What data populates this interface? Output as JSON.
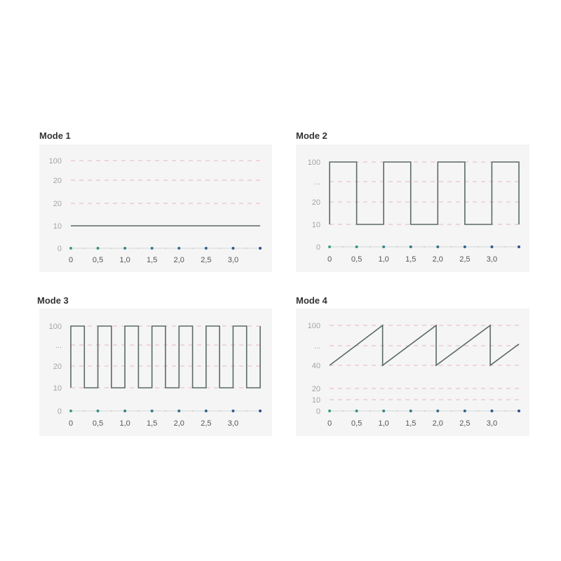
{
  "colors": {
    "panel_background": "#f5f5f5",
    "series_line": "#5b6968",
    "gridline": "#e9b5ba",
    "axis_line": "#d4d8d8",
    "dot_start": "#3a9e86",
    "dot_end": "#2f4f8f"
  },
  "chart_data": [
    {
      "type": "line",
      "title": "Mode 1",
      "x_ticks": [
        "0",
        "0,5",
        "1,0",
        "1,5",
        "2,0",
        "2,5",
        "3,0"
      ],
      "x_range": [
        0,
        3.5
      ],
      "y_ticks": [
        "100",
        "20",
        "20",
        "10",
        "0"
      ],
      "grid": "dashed horizontal",
      "series": [
        {
          "points": [
            [
              0,
              10
            ],
            [
              3.5,
              10
            ]
          ]
        }
      ]
    },
    {
      "type": "line",
      "title": "Mode 2",
      "x_ticks": [
        "0",
        "0,5",
        "1,0",
        "1,5",
        "2,0",
        "2,5",
        "3,0"
      ],
      "x_range": [
        0,
        3.5
      ],
      "y_ticks": [
        "100",
        "...",
        "20",
        "10",
        "0"
      ],
      "grid": "dashed horizontal",
      "series": [
        {
          "points": [
            [
              0,
              10
            ],
            [
              0,
              100
            ],
            [
              0.5,
              100
            ],
            [
              0.5,
              10
            ],
            [
              1.0,
              10
            ],
            [
              1.0,
              100
            ],
            [
              1.5,
              100
            ],
            [
              1.5,
              10
            ],
            [
              2.0,
              10
            ],
            [
              2.0,
              100
            ],
            [
              2.5,
              100
            ],
            [
              2.5,
              10
            ],
            [
              3.0,
              10
            ],
            [
              3.0,
              100
            ],
            [
              3.5,
              100
            ],
            [
              3.5,
              10
            ]
          ]
        }
      ]
    },
    {
      "type": "line",
      "title": "Mode 3",
      "x_ticks": [
        "0",
        "0,5",
        "1,0",
        "1,5",
        "2,0",
        "2,5",
        "3,0"
      ],
      "x_range": [
        0,
        3.5
      ],
      "y_ticks": [
        "100",
        "...",
        "20",
        "10",
        "0"
      ],
      "grid": "dashed horizontal",
      "series": [
        {
          "points": [
            [
              0,
              10
            ],
            [
              0,
              100
            ],
            [
              0.25,
              100
            ],
            [
              0.25,
              10
            ],
            [
              0.5,
              10
            ],
            [
              0.5,
              100
            ],
            [
              0.75,
              100
            ],
            [
              0.75,
              10
            ],
            [
              1.0,
              10
            ],
            [
              1.0,
              100
            ],
            [
              1.25,
              100
            ],
            [
              1.25,
              10
            ],
            [
              1.5,
              10
            ],
            [
              1.5,
              100
            ],
            [
              1.75,
              100
            ],
            [
              1.75,
              10
            ],
            [
              2.0,
              10
            ],
            [
              2.0,
              100
            ],
            [
              2.25,
              100
            ],
            [
              2.25,
              10
            ],
            [
              2.5,
              10
            ],
            [
              2.5,
              100
            ],
            [
              2.75,
              100
            ],
            [
              2.75,
              10
            ],
            [
              3.0,
              10
            ],
            [
              3.0,
              100
            ],
            [
              3.25,
              100
            ],
            [
              3.25,
              10
            ],
            [
              3.5,
              10
            ],
            [
              3.5,
              100
            ]
          ]
        }
      ]
    },
    {
      "type": "line",
      "title": "Mode 4",
      "x_ticks": [
        "0",
        "0,5",
        "1,0",
        "1,5",
        "2,0",
        "2,5",
        "3,0"
      ],
      "x_range": [
        0,
        3.5
      ],
      "y_ticks": [
        "100",
        "...",
        "40",
        "20",
        "10",
        "0"
      ],
      "grid": "dashed horizontal",
      "series": [
        {
          "points": [
            [
              0,
              40
            ],
            [
              0.98,
              100
            ],
            [
              0.98,
              40
            ],
            [
              1.97,
              100
            ],
            [
              1.97,
              40
            ],
            [
              2.97,
              100
            ],
            [
              2.97,
              40
            ],
            [
              3.5,
              72
            ]
          ]
        }
      ]
    }
  ]
}
